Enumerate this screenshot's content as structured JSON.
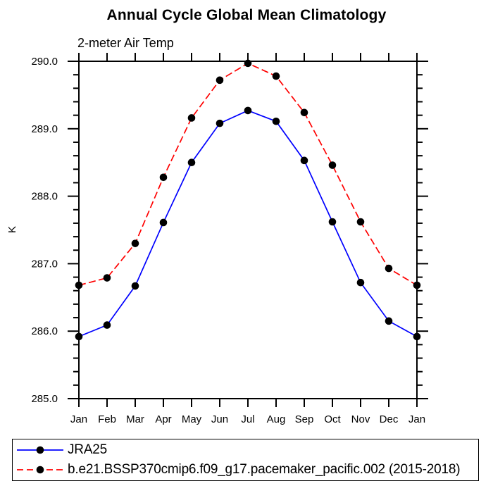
{
  "chart_data": {
    "type": "line",
    "title": "Annual Cycle Global Mean Climatology",
    "subtitle": "2-meter Air Temp",
    "ylabel": "K",
    "xlabel": "",
    "categories": [
      "Jan",
      "Feb",
      "Mar",
      "Apr",
      "May",
      "Jun",
      "Jul",
      "Aug",
      "Sep",
      "Oct",
      "Nov",
      "Dec",
      "Jan"
    ],
    "series": [
      {
        "name": "JRA25",
        "color": "#0000ff",
        "line_style": "solid",
        "marker": "filled-circle",
        "marker_color": "#000000",
        "values": [
          285.92,
          286.09,
          286.67,
          287.61,
          288.5,
          289.08,
          289.27,
          289.11,
          288.53,
          287.62,
          286.72,
          286.15,
          285.92
        ]
      },
      {
        "name": "b.e21.BSSP370cmip6.f09_g17.pacemaker_pacific.002 (2015-2018)",
        "color": "#ff0000",
        "line_style": "dashed",
        "marker": "filled-circle",
        "marker_color": "#000000",
        "values": [
          286.68,
          286.79,
          287.3,
          288.28,
          289.16,
          289.72,
          289.97,
          289.78,
          289.24,
          288.46,
          287.62,
          286.93,
          286.68
        ]
      }
    ],
    "ylim": [
      285.0,
      290.0
    ],
    "y_major_step": 1.0,
    "y_minor_step": 0.2,
    "y_major_tick_labels": [
      "285.0",
      "286.0",
      "287.0",
      "288.0",
      "289.0",
      "290.0"
    ],
    "grid": false,
    "axis_color": "#000000",
    "background": "#ffffff",
    "legend_position": "bottom-left-box"
  }
}
